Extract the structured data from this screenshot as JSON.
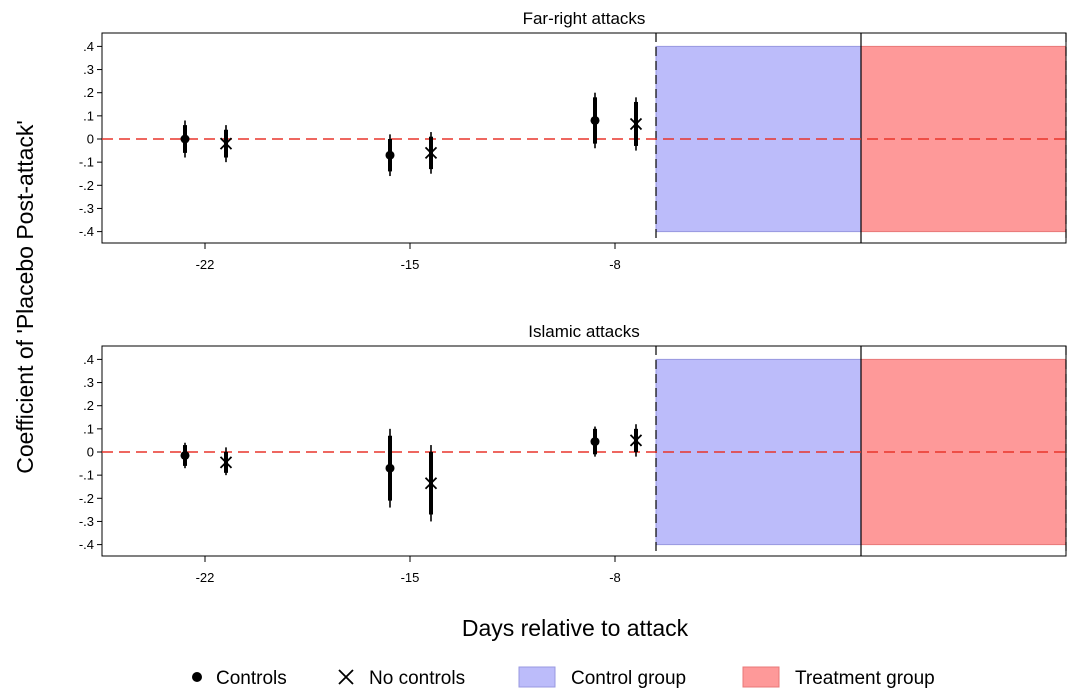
{
  "chart_data": {
    "type": "scatter",
    "ylabel": "Coefficient of 'Placebo Post-attack'",
    "xlabel": "Days relative to attack",
    "ylim": [
      -0.43,
      0.43
    ],
    "y_ticks": [
      0.4,
      0.3,
      0.2,
      0.1,
      0,
      -0.1,
      -0.2,
      -0.3,
      -0.4
    ],
    "y_tick_labels": [
      ".4",
      ".3",
      ".2",
      ".1",
      "0",
      "-.1",
      "-.2",
      "-.3",
      "-.4"
    ],
    "x_ticks": [
      -22,
      -15,
      -8
    ],
    "x_tick_labels": [
      "-22",
      "-15",
      "-8"
    ],
    "grid": false,
    "reference_line": {
      "y": 0,
      "style": "dashed",
      "color": "#e8352b"
    },
    "legend": {
      "placement": "bottom",
      "entries": [
        {
          "label": "Controls",
          "marker": "dot"
        },
        {
          "label": "No controls",
          "marker": "x"
        },
        {
          "label": "Control group",
          "color": "#bcbcfa",
          "edge": "#9999e0"
        },
        {
          "label": "Treatment group",
          "color": "#fe9999",
          "edge": "#e87878"
        }
      ]
    },
    "panels": [
      {
        "title": "Far-right attacks",
        "series": [
          {
            "name": "Controls",
            "points": [
              {
                "x": -22,
                "y": 0.0,
                "ci90": [
                  -0.06,
                  0.06
                ],
                "ci95": [
                  -0.08,
                  0.08
                ]
              },
              {
                "x": -15,
                "y": -0.07,
                "ci90": [
                  -0.14,
                  0.0
                ],
                "ci95": [
                  -0.16,
                  0.02
                ]
              },
              {
                "x": -8,
                "y": 0.08,
                "ci90": [
                  -0.02,
                  0.18
                ],
                "ci95": [
                  -0.04,
                  0.2
                ]
              }
            ]
          },
          {
            "name": "No controls",
            "points": [
              {
                "x": -22,
                "y": -0.02,
                "ci90": [
                  -0.08,
                  0.04
                ],
                "ci95": [
                  -0.1,
                  0.06
                ]
              },
              {
                "x": -15,
                "y": -0.06,
                "ci90": [
                  -0.13,
                  0.01
                ],
                "ci95": [
                  -0.15,
                  0.03
                ]
              },
              {
                "x": -8,
                "y": 0.065,
                "ci90": [
                  -0.03,
                  0.16
                ],
                "ci95": [
                  -0.05,
                  0.18
                ]
              }
            ]
          }
        ]
      },
      {
        "title": "Islamic attacks",
        "series": [
          {
            "name": "Controls",
            "points": [
              {
                "x": -22,
                "y": -0.015,
                "ci90": [
                  -0.06,
                  0.03
                ],
                "ci95": [
                  -0.07,
                  0.04
                ]
              },
              {
                "x": -15,
                "y": -0.07,
                "ci90": [
                  -0.21,
                  0.07
                ],
                "ci95": [
                  -0.24,
                  0.1
                ]
              },
              {
                "x": -8,
                "y": 0.045,
                "ci90": [
                  -0.01,
                  0.1
                ],
                "ci95": [
                  -0.02,
                  0.11
                ]
              }
            ]
          },
          {
            "name": "No controls",
            "points": [
              {
                "x": -22,
                "y": -0.045,
                "ci90": [
                  -0.09,
                  0.0
                ],
                "ci95": [
                  -0.1,
                  0.02
                ]
              },
              {
                "x": -15,
                "y": -0.135,
                "ci90": [
                  -0.27,
                  0.0
                ],
                "ci95": [
                  -0.3,
                  0.03
                ]
              },
              {
                "x": -8,
                "y": 0.05,
                "ci90": [
                  0.0,
                  0.1
                ],
                "ci95": [
                  -0.02,
                  0.12
                ]
              }
            ]
          }
        ]
      }
    ]
  }
}
